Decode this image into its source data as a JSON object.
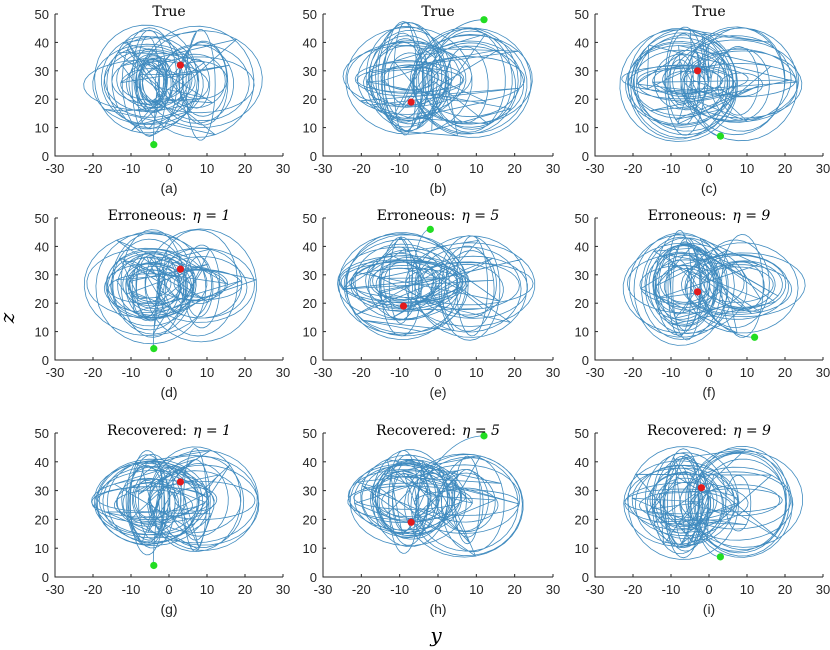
{
  "figure": {
    "y_label": "y",
    "z_label": "z",
    "colors": {
      "trajectory": "#1f77b4",
      "start_point": "#22dd22",
      "end_point": "#e31a1c",
      "axes": "#262626"
    }
  },
  "chart_data": [
    {
      "type": "line",
      "panel": "a",
      "subplot_label": "(a)",
      "title_text": "True",
      "title_math": "",
      "xlim": [
        -30,
        30
      ],
      "ylim": [
        0,
        50
      ],
      "xticks": [
        -30,
        -20,
        -10,
        0,
        10,
        20,
        30
      ],
      "yticks": [
        0,
        10,
        20,
        30,
        40,
        50
      ],
      "start_point": [
        -4,
        4
      ],
      "end_point": [
        3,
        32
      ],
      "center": [
        -5,
        26
      ]
    },
    {
      "type": "line",
      "panel": "b",
      "subplot_label": "(b)",
      "title_text": "True",
      "title_math": "",
      "xlim": [
        -30,
        30
      ],
      "ylim": [
        0,
        50
      ],
      "xticks": [
        -30,
        -20,
        -10,
        0,
        10,
        20,
        30
      ],
      "yticks": [
        0,
        10,
        20,
        30,
        40,
        50
      ],
      "start_point": [
        12,
        48
      ],
      "end_point": [
        -7,
        19
      ],
      "center": [
        -8,
        27
      ]
    },
    {
      "type": "line",
      "panel": "c",
      "subplot_label": "(c)",
      "title_text": "True",
      "title_math": "",
      "xlim": [
        -30,
        30
      ],
      "ylim": [
        0,
        50
      ],
      "xticks": [
        -30,
        -20,
        -10,
        0,
        10,
        20,
        30
      ],
      "yticks": [
        0,
        10,
        20,
        30,
        40,
        50
      ],
      "start_point": [
        3,
        7
      ],
      "end_point": [
        -3,
        30
      ],
      "center": [
        -7,
        26
      ]
    },
    {
      "type": "line",
      "panel": "d",
      "subplot_label": "(d)",
      "title_text": "Erroneous:",
      "title_math": "η = 1",
      "xlim": [
        -30,
        30
      ],
      "ylim": [
        0,
        50
      ],
      "xticks": [
        -30,
        -20,
        -10,
        0,
        10,
        20,
        30
      ],
      "yticks": [
        0,
        10,
        20,
        30,
        40,
        50
      ],
      "start_point": [
        -4,
        4
      ],
      "end_point": [
        3,
        32
      ],
      "center": [
        -5,
        26
      ]
    },
    {
      "type": "line",
      "panel": "e",
      "subplot_label": "(e)",
      "title_text": "Erroneous:",
      "title_math": "η = 5",
      "xlim": [
        -30,
        30
      ],
      "ylim": [
        0,
        50
      ],
      "xticks": [
        -30,
        -20,
        -10,
        0,
        10,
        20,
        30
      ],
      "yticks": [
        0,
        10,
        20,
        30,
        40,
        50
      ],
      "start_point": [
        -2,
        46
      ],
      "end_point": [
        -9,
        19
      ],
      "center": [
        -9,
        27
      ]
    },
    {
      "type": "line",
      "panel": "f",
      "subplot_label": "(f)",
      "title_text": "Erroneous:",
      "title_math": "η = 9",
      "xlim": [
        -30,
        30
      ],
      "ylim": [
        0,
        50
      ],
      "xticks": [
        -30,
        -20,
        -10,
        0,
        10,
        20,
        30
      ],
      "yticks": [
        0,
        10,
        20,
        30,
        40,
        50
      ],
      "start_point": [
        12,
        8
      ],
      "end_point": [
        -3,
        24
      ],
      "center": [
        -7,
        26
      ]
    },
    {
      "type": "line",
      "panel": "g",
      "subplot_label": "(g)",
      "title_text": "Recovered:",
      "title_math": "η = 1",
      "xlim": [
        -30,
        30
      ],
      "ylim": [
        0,
        50
      ],
      "xticks": [
        -30,
        -20,
        -10,
        0,
        10,
        20,
        30
      ],
      "yticks": [
        0,
        10,
        20,
        30,
        40,
        50
      ],
      "start_point": [
        -4,
        4
      ],
      "end_point": [
        3,
        33
      ],
      "center": [
        -5,
        26
      ]
    },
    {
      "type": "line",
      "panel": "h",
      "subplot_label": "(h)",
      "title_text": "Recovered:",
      "title_math": "η = 5",
      "xlim": [
        -30,
        30
      ],
      "ylim": [
        0,
        50
      ],
      "xticks": [
        -30,
        -20,
        -10,
        0,
        10,
        20,
        30
      ],
      "yticks": [
        0,
        10,
        20,
        30,
        40,
        50
      ],
      "start_point": [
        12,
        49
      ],
      "end_point": [
        -7,
        19
      ],
      "center": [
        -8,
        27
      ]
    },
    {
      "type": "line",
      "panel": "i",
      "subplot_label": "(i)",
      "title_text": "Recovered:",
      "title_math": "η = 9",
      "xlim": [
        -30,
        30
      ],
      "ylim": [
        0,
        50
      ],
      "xticks": [
        -30,
        -20,
        -10,
        0,
        10,
        20,
        30
      ],
      "yticks": [
        0,
        10,
        20,
        30,
        40,
        50
      ],
      "start_point": [
        3,
        7
      ],
      "end_point": [
        -2,
        31
      ],
      "center": [
        -7,
        26
      ]
    }
  ]
}
